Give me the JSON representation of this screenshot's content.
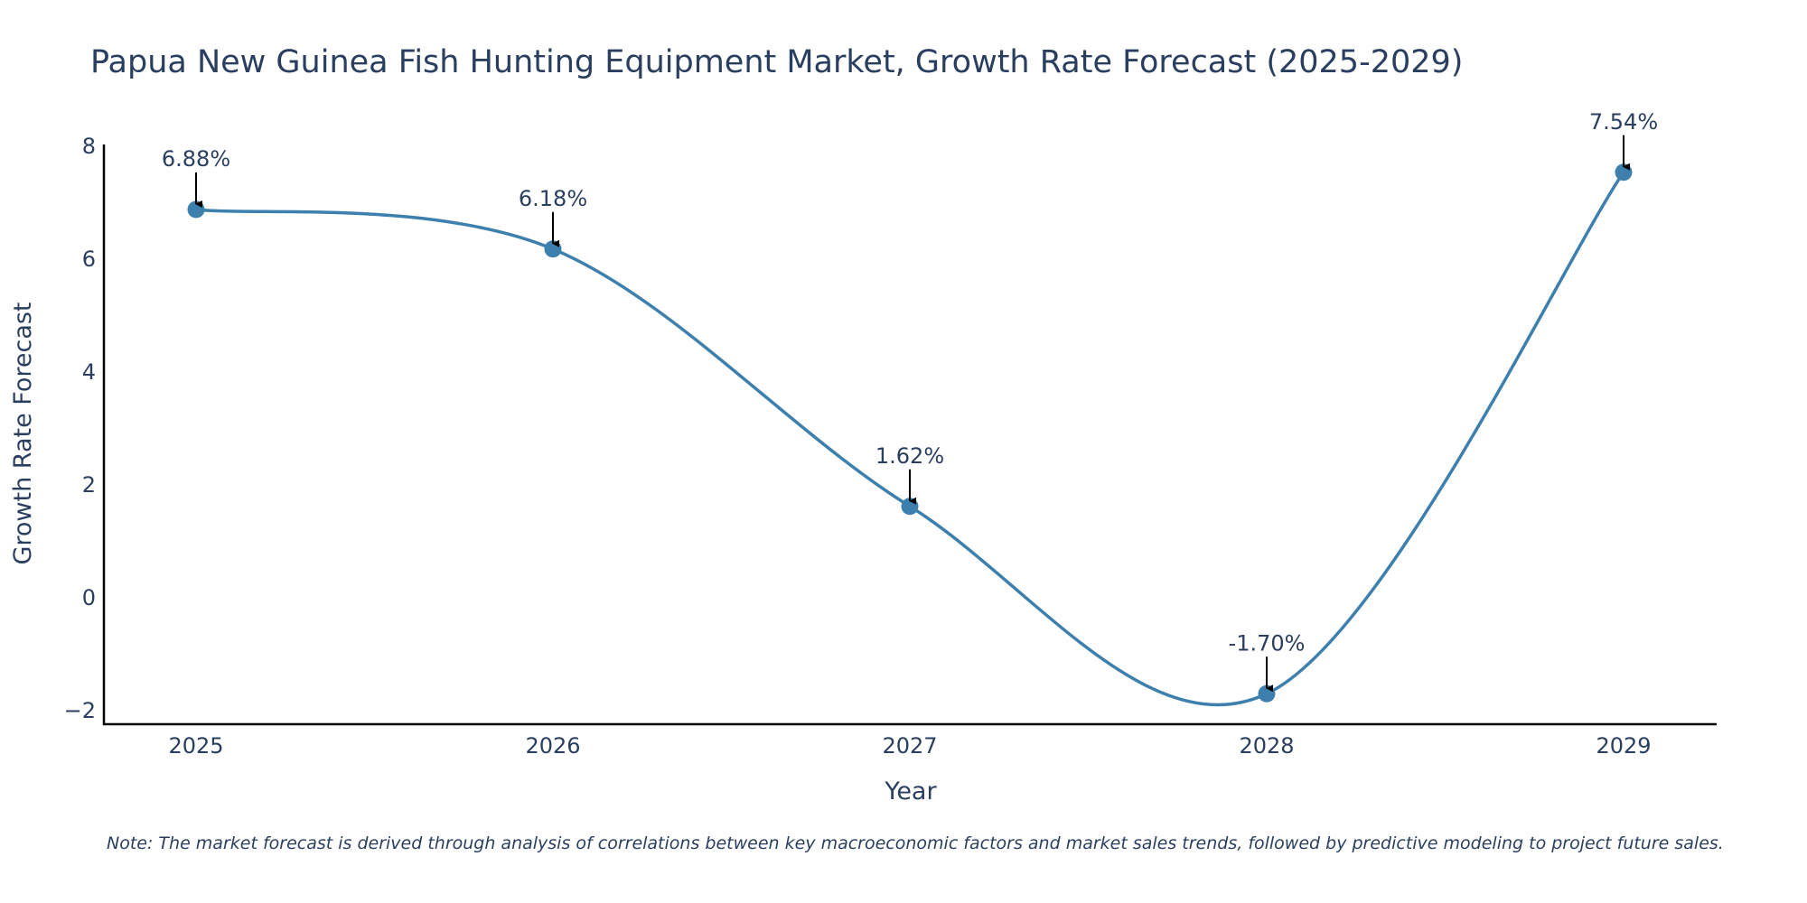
{
  "chart_data": {
    "type": "line",
    "title": "Papua New Guinea Fish Hunting Equipment Market, Growth Rate Forecast (2025-2029)",
    "xlabel": "Year",
    "ylabel": "Growth Rate Forecast",
    "categories": [
      "2025",
      "2026",
      "2027",
      "2028",
      "2029"
    ],
    "series": [
      {
        "name": "Growth Rate Forecast",
        "values": [
          6.88,
          6.18,
          1.62,
          -1.7,
          7.54
        ]
      }
    ],
    "annotations": [
      "6.88%",
      "6.18%",
      "1.62%",
      "-1.70%",
      "7.54%"
    ],
    "yticks": [
      -2,
      0,
      2,
      4,
      6,
      8
    ],
    "ytick_labels": [
      "−2",
      "0",
      "2",
      "4",
      "6",
      "8"
    ],
    "ylim": [
      -2.2,
      8
    ],
    "line_color": "#3d7fad",
    "marker_color": "#3d7fad",
    "arrow_color": "#000000",
    "note": "Note: The market forecast is derived through analysis of correlations between key macroeconomic factors and market sales trends, followed by predictive modeling to project future sales."
  }
}
